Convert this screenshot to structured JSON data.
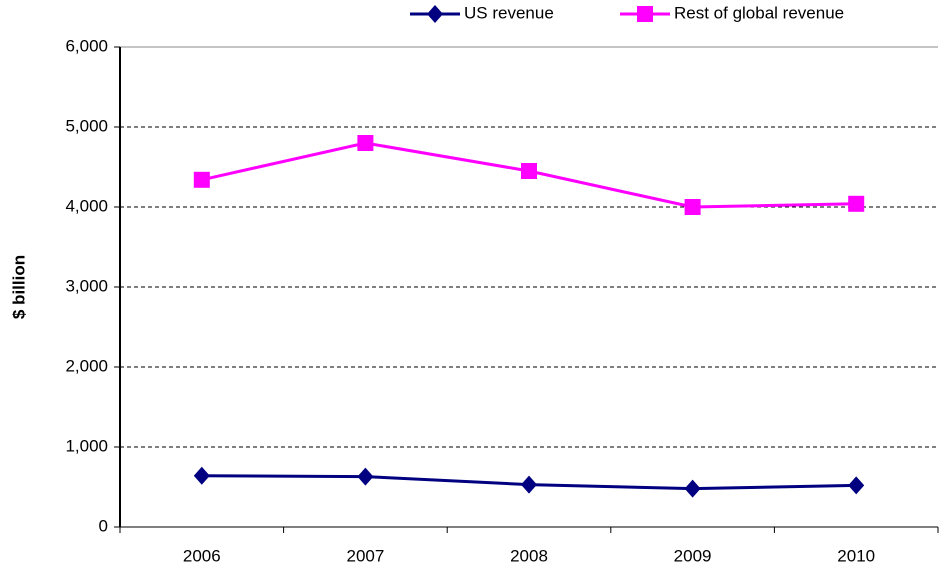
{
  "chart_data": {
    "type": "line",
    "y_label": "$ billion",
    "categories": [
      "2006",
      "2007",
      "2008",
      "2009",
      "2010"
    ],
    "series": [
      {
        "name": "US revenue",
        "color": "#000080",
        "marker": "diamond",
        "values": [
          640,
          630,
          530,
          480,
          520
        ]
      },
      {
        "name": "Rest of global revenue",
        "color": "#ff00ff",
        "marker": "square",
        "values": [
          4340,
          4800,
          4450,
          4000,
          4040
        ]
      }
    ],
    "ylim": [
      0,
      6000
    ],
    "yticks": [
      0,
      {
        "value": 1000,
        "label": "1,000"
      },
      {
        "value": 2000,
        "label": "2,000"
      },
      {
        "value": 3000,
        "label": "3,000"
      },
      {
        "value": 4000,
        "label": "4,000"
      },
      {
        "value": 5000,
        "label": "5,000"
      },
      {
        "value": 6000,
        "label": "6,000"
      }
    ],
    "grid": true,
    "legend": "top-right"
  }
}
